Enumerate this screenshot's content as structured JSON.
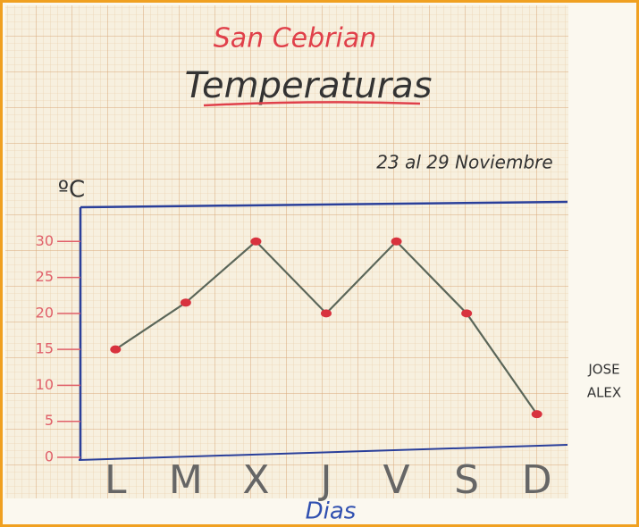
{
  "chart_data": {
    "type": "line",
    "heading": "San Cebrian",
    "title": "Temperaturas",
    "subtitle": "23 al 29 Noviembre",
    "y_label": "ºC",
    "x_label": "Dias",
    "annotations": [
      "JOSE",
      "ALEX"
    ],
    "categories": [
      "L",
      "M",
      "X",
      "J",
      "V",
      "S",
      "D"
    ],
    "values": [
      15,
      21.5,
      30,
      20,
      30,
      20,
      6
    ],
    "color": "#5b6659",
    "marker_color": "#d8323e",
    "ylim": [
      0,
      35
    ],
    "yticks": [
      0,
      5,
      10,
      15,
      20,
      25,
      30
    ]
  }
}
